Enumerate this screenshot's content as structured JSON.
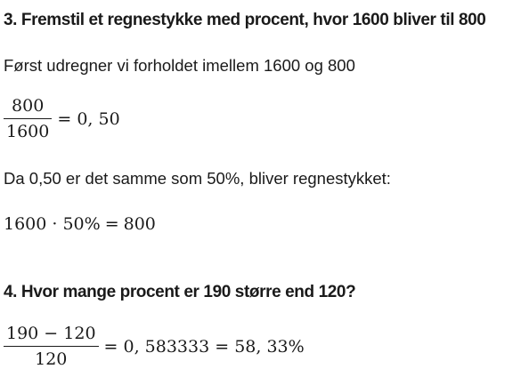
{
  "section1": {
    "heading": "3. Fremstil et regnestykke med procent, hvor 1600 bliver til 800",
    "intro": "Først udregner vi forholdet imellem 1600 og 800",
    "fraction": {
      "numerator": "800",
      "denominator": "1600",
      "result": "= 0, 50"
    },
    "explanation": "Da 0,50 er det samme som 50%, bliver regnestykket:",
    "equation": {
      "lhs": "1600 · 50%",
      "equals": "=",
      "rhs": "800"
    }
  },
  "section2": {
    "heading": "4. Hvor mange procent er 190 større end 120?",
    "fraction": {
      "numerator": "190 − 120",
      "denominator": "120",
      "result": "= 0, 583333 = 58, 33%"
    }
  }
}
